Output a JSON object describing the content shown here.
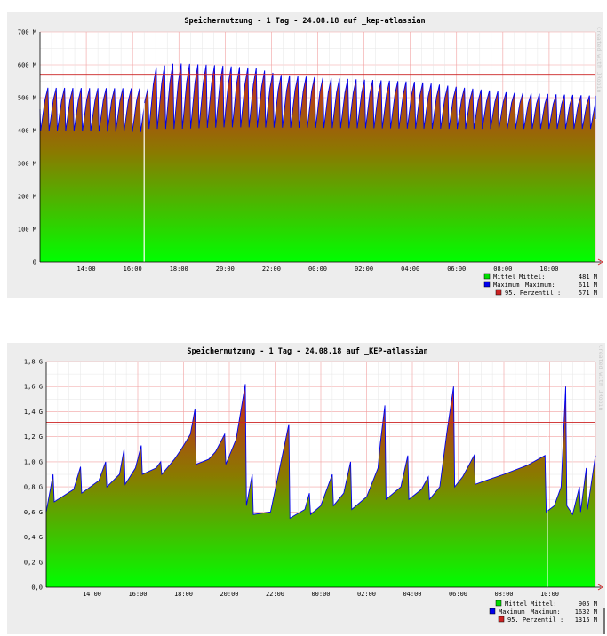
{
  "chart_data": [
    {
      "type": "area",
      "title": "Speichernutzung - 1 Tag - 24.08.18 auf _kep-atlassian",
      "watermark": "Created with JRobin",
      "ylim": [
        0,
        700
      ],
      "y_tick_labels": [
        "0",
        "100 M",
        "200 M",
        "300 M",
        "400 M",
        "500 M",
        "600 M",
        "700 M"
      ],
      "x_tick_labels": [
        "14:00",
        "16:00",
        "18:00",
        "20:00",
        "22:00",
        "00:00",
        "02:00",
        "04:00",
        "06:00",
        "08:00",
        "10:00"
      ],
      "x_range_hours": [
        12.0,
        36.0
      ],
      "percentile_95": 571,
      "dropouts_hour": [
        16.5
      ],
      "series": [
        {
          "name": "Mittel",
          "color": "#00ff00",
          "period_h": 0.36,
          "base": [
            [
              12,
              400
            ],
            [
              16.4,
              395
            ],
            [
              16.5,
              405
            ],
            [
              18,
              405
            ],
            [
              20,
              410
            ],
            [
              24,
              408
            ],
            [
              30,
              405
            ],
            [
              36,
              405
            ]
          ],
          "peak": [
            [
              12,
              530
            ],
            [
              16.4,
              528
            ],
            [
              16.5,
              590
            ],
            [
              17.5,
              605
            ],
            [
              19,
              600
            ],
            [
              21,
              590
            ],
            [
              22,
              570
            ],
            [
              24,
              560
            ],
            [
              28,
              548
            ],
            [
              30,
              530
            ],
            [
              32,
              515
            ],
            [
              36,
              505
            ]
          ]
        }
      ],
      "legend": [
        {
          "name": "Mittel",
          "label": "Mittel:",
          "value": "481 M",
          "color": "#00dd00"
        },
        {
          "name": "Maximum",
          "label": "Maximum:",
          "value": "611 M",
          "color": "#0000ee"
        },
        {
          "name": "95. Perzentil",
          "label": ":",
          "value": "571 M",
          "color": "#cc2222"
        }
      ]
    },
    {
      "type": "area",
      "title": "Speichernutzung - 1 Tag - 24.08.18 auf _KEP-atlassian",
      "watermark": "Created with JRobin",
      "ylim": [
        0,
        1.8
      ],
      "y_tick_labels": [
        "0,0",
        "0,2 G",
        "0,4 G",
        "0,6 G",
        "0,8 G",
        "1,0 G",
        "1,2 G",
        "1,4 G",
        "1,6 G",
        "1,8 G"
      ],
      "x_tick_labels": [
        "14:00",
        "16:00",
        "18:00",
        "20:00",
        "22:00",
        "00:00",
        "02:00",
        "04:00",
        "06:00",
        "08:00",
        "10:00"
      ],
      "x_range_hours": [
        12.0,
        36.0
      ],
      "percentile_95": 1.315,
      "dropouts_hour": [
        33.9
      ],
      "series": [
        {
          "name": "Mittel",
          "color": "#00ff00",
          "points": [
            [
              12.0,
              0.6
            ],
            [
              12.3,
              0.9
            ],
            [
              12.35,
              0.68
            ],
            [
              13.2,
              0.78
            ],
            [
              13.5,
              0.96
            ],
            [
              13.55,
              0.75
            ],
            [
              14.3,
              0.85
            ],
            [
              14.6,
              1.0
            ],
            [
              14.65,
              0.8
            ],
            [
              15.2,
              0.9
            ],
            [
              15.4,
              1.1
            ],
            [
              15.45,
              0.82
            ],
            [
              15.9,
              0.95
            ],
            [
              16.15,
              1.13
            ],
            [
              16.2,
              0.9
            ],
            [
              16.8,
              0.95
            ],
            [
              17.0,
              1.0
            ],
            [
              17.05,
              0.9
            ],
            [
              17.6,
              1.02
            ],
            [
              17.9,
              1.1
            ],
            [
              18.3,
              1.22
            ],
            [
              18.5,
              1.42
            ],
            [
              18.55,
              0.98
            ],
            [
              19.1,
              1.02
            ],
            [
              19.4,
              1.08
            ],
            [
              19.8,
              1.22
            ],
            [
              19.85,
              0.98
            ],
            [
              20.3,
              1.18
            ],
            [
              20.7,
              1.62
            ],
            [
              20.75,
              0.65
            ],
            [
              21.0,
              0.9
            ],
            [
              21.05,
              0.58
            ],
            [
              21.8,
              0.6
            ],
            [
              22.6,
              1.3
            ],
            [
              22.65,
              0.55
            ],
            [
              23.3,
              0.62
            ],
            [
              23.5,
              0.75
            ],
            [
              23.55,
              0.58
            ],
            [
              24.0,
              0.65
            ],
            [
              24.5,
              0.9
            ],
            [
              24.55,
              0.65
            ],
            [
              25.0,
              0.75
            ],
            [
              25.3,
              1.0
            ],
            [
              25.35,
              0.62
            ],
            [
              26.0,
              0.72
            ],
            [
              26.5,
              0.95
            ],
            [
              26.6,
              1.15
            ],
            [
              26.8,
              1.45
            ],
            [
              26.85,
              0.7
            ],
            [
              27.5,
              0.8
            ],
            [
              27.8,
              1.05
            ],
            [
              27.85,
              0.7
            ],
            [
              28.4,
              0.78
            ],
            [
              28.7,
              0.88
            ],
            [
              28.75,
              0.7
            ],
            [
              29.2,
              0.8
            ],
            [
              29.5,
              1.22
            ],
            [
              29.8,
              1.6
            ],
            [
              29.85,
              0.8
            ],
            [
              30.2,
              0.88
            ],
            [
              30.7,
              1.05
            ],
            [
              30.75,
              0.82
            ],
            [
              31.2,
              0.85
            ],
            [
              32.0,
              0.9
            ],
            [
              33.0,
              0.97
            ],
            [
              33.8,
              1.05
            ],
            [
              33.85,
              0.6
            ],
            [
              34.2,
              0.65
            ],
            [
              34.5,
              0.8
            ],
            [
              34.7,
              1.6
            ],
            [
              34.75,
              0.65
            ],
            [
              35.0,
              0.58
            ],
            [
              35.3,
              0.8
            ],
            [
              35.35,
              0.6
            ],
            [
              35.6,
              0.95
            ],
            [
              35.65,
              0.62
            ],
            [
              36.0,
              1.05
            ]
          ]
        }
      ],
      "legend": [
        {
          "name": "Mittel",
          "label": "Mittel:",
          "value": "905 M",
          "color": "#00dd00"
        },
        {
          "name": "Maximum",
          "label": "Maximum:",
          "value": "1632 M",
          "color": "#0000ee"
        },
        {
          "name": "95. Perzentil",
          "label": ":",
          "value": "1315 M",
          "color": "#cc2222"
        }
      ]
    }
  ]
}
